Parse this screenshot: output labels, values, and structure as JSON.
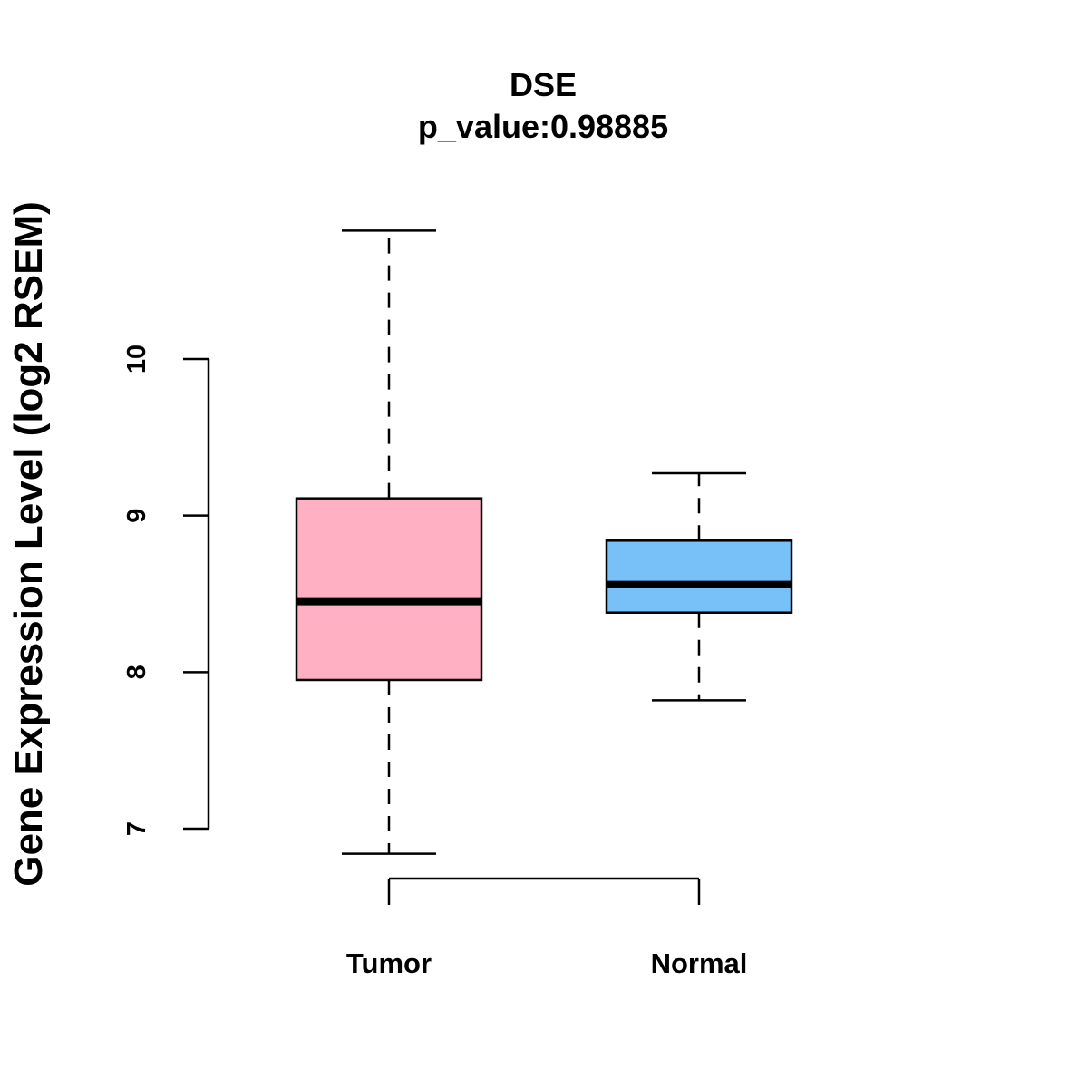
{
  "chart_data": {
    "type": "boxplot",
    "title": "DSE",
    "subtitle": "p_value:0.98885",
    "xlabel": "",
    "ylabel": "Gene Expression Level (log2 RSEM)",
    "ylim": [
      6.5,
      11.3
    ],
    "yticks": [
      7,
      8,
      9,
      10
    ],
    "grid": false,
    "legend": "none",
    "categories": [
      "Tumor",
      "Normal"
    ],
    "boxes": [
      {
        "category": "Tumor",
        "min": 6.84,
        "q1": 7.95,
        "median": 8.45,
        "q3": 9.11,
        "max": 10.82,
        "color": "#FFB0C2"
      },
      {
        "category": "Normal",
        "min": 7.82,
        "q1": 8.38,
        "median": 8.56,
        "q3": 8.84,
        "max": 9.27,
        "color": "#78C0F8"
      }
    ]
  }
}
